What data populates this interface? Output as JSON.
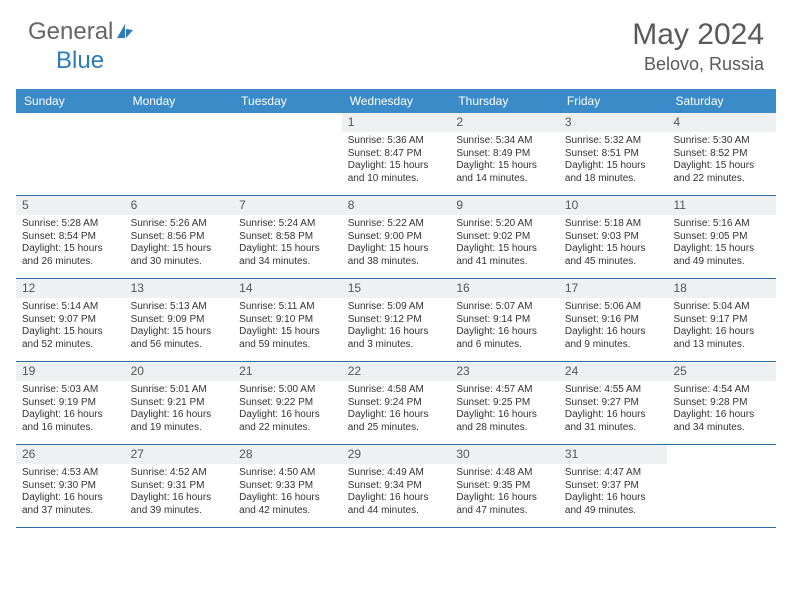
{
  "brand": {
    "part1": "General",
    "part2": "Blue"
  },
  "title": "May 2024",
  "location": "Belovo, Russia",
  "day_labels": [
    "Sunday",
    "Monday",
    "Tuesday",
    "Wednesday",
    "Thursday",
    "Friday",
    "Saturday"
  ],
  "colors": {
    "header_bg": "#3b8bc9",
    "row_divider": "#2f6fa6",
    "daynum_bg": "#eef0f1",
    "text": "#333333",
    "title_text": "#5a5a5a"
  },
  "weeks": [
    [
      null,
      null,
      null,
      {
        "n": "1",
        "sr": "5:36 AM",
        "ss": "8:47 PM",
        "dl": "15 hours and 10 minutes."
      },
      {
        "n": "2",
        "sr": "5:34 AM",
        "ss": "8:49 PM",
        "dl": "15 hours and 14 minutes."
      },
      {
        "n": "3",
        "sr": "5:32 AM",
        "ss": "8:51 PM",
        "dl": "15 hours and 18 minutes."
      },
      {
        "n": "4",
        "sr": "5:30 AM",
        "ss": "8:52 PM",
        "dl": "15 hours and 22 minutes."
      }
    ],
    [
      {
        "n": "5",
        "sr": "5:28 AM",
        "ss": "8:54 PM",
        "dl": "15 hours and 26 minutes."
      },
      {
        "n": "6",
        "sr": "5:26 AM",
        "ss": "8:56 PM",
        "dl": "15 hours and 30 minutes."
      },
      {
        "n": "7",
        "sr": "5:24 AM",
        "ss": "8:58 PM",
        "dl": "15 hours and 34 minutes."
      },
      {
        "n": "8",
        "sr": "5:22 AM",
        "ss": "9:00 PM",
        "dl": "15 hours and 38 minutes."
      },
      {
        "n": "9",
        "sr": "5:20 AM",
        "ss": "9:02 PM",
        "dl": "15 hours and 41 minutes."
      },
      {
        "n": "10",
        "sr": "5:18 AM",
        "ss": "9:03 PM",
        "dl": "15 hours and 45 minutes."
      },
      {
        "n": "11",
        "sr": "5:16 AM",
        "ss": "9:05 PM",
        "dl": "15 hours and 49 minutes."
      }
    ],
    [
      {
        "n": "12",
        "sr": "5:14 AM",
        "ss": "9:07 PM",
        "dl": "15 hours and 52 minutes."
      },
      {
        "n": "13",
        "sr": "5:13 AM",
        "ss": "9:09 PM",
        "dl": "15 hours and 56 minutes."
      },
      {
        "n": "14",
        "sr": "5:11 AM",
        "ss": "9:10 PM",
        "dl": "15 hours and 59 minutes."
      },
      {
        "n": "15",
        "sr": "5:09 AM",
        "ss": "9:12 PM",
        "dl": "16 hours and 3 minutes."
      },
      {
        "n": "16",
        "sr": "5:07 AM",
        "ss": "9:14 PM",
        "dl": "16 hours and 6 minutes."
      },
      {
        "n": "17",
        "sr": "5:06 AM",
        "ss": "9:16 PM",
        "dl": "16 hours and 9 minutes."
      },
      {
        "n": "18",
        "sr": "5:04 AM",
        "ss": "9:17 PM",
        "dl": "16 hours and 13 minutes."
      }
    ],
    [
      {
        "n": "19",
        "sr": "5:03 AM",
        "ss": "9:19 PM",
        "dl": "16 hours and 16 minutes."
      },
      {
        "n": "20",
        "sr": "5:01 AM",
        "ss": "9:21 PM",
        "dl": "16 hours and 19 minutes."
      },
      {
        "n": "21",
        "sr": "5:00 AM",
        "ss": "9:22 PM",
        "dl": "16 hours and 22 minutes."
      },
      {
        "n": "22",
        "sr": "4:58 AM",
        "ss": "9:24 PM",
        "dl": "16 hours and 25 minutes."
      },
      {
        "n": "23",
        "sr": "4:57 AM",
        "ss": "9:25 PM",
        "dl": "16 hours and 28 minutes."
      },
      {
        "n": "24",
        "sr": "4:55 AM",
        "ss": "9:27 PM",
        "dl": "16 hours and 31 minutes."
      },
      {
        "n": "25",
        "sr": "4:54 AM",
        "ss": "9:28 PM",
        "dl": "16 hours and 34 minutes."
      }
    ],
    [
      {
        "n": "26",
        "sr": "4:53 AM",
        "ss": "9:30 PM",
        "dl": "16 hours and 37 minutes."
      },
      {
        "n": "27",
        "sr": "4:52 AM",
        "ss": "9:31 PM",
        "dl": "16 hours and 39 minutes."
      },
      {
        "n": "28",
        "sr": "4:50 AM",
        "ss": "9:33 PM",
        "dl": "16 hours and 42 minutes."
      },
      {
        "n": "29",
        "sr": "4:49 AM",
        "ss": "9:34 PM",
        "dl": "16 hours and 44 minutes."
      },
      {
        "n": "30",
        "sr": "4:48 AM",
        "ss": "9:35 PM",
        "dl": "16 hours and 47 minutes."
      },
      {
        "n": "31",
        "sr": "4:47 AM",
        "ss": "9:37 PM",
        "dl": "16 hours and 49 minutes."
      },
      null
    ]
  ],
  "labels": {
    "sunrise": "Sunrise:",
    "sunset": "Sunset:",
    "daylight": "Daylight:"
  }
}
